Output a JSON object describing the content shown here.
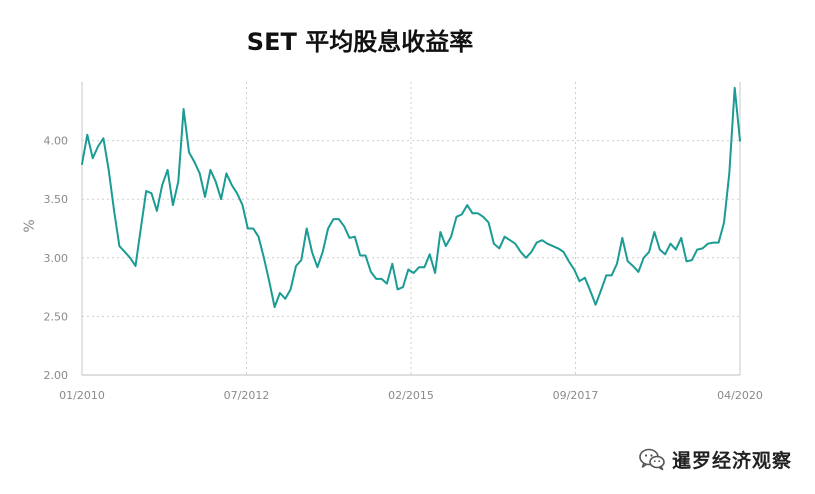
{
  "chart_data": {
    "type": "line",
    "title": "SET 平均股息收益率",
    "xlabel": "",
    "ylabel": "%",
    "ylim": [
      2.0,
      4.5
    ],
    "yticks": [
      "2.00",
      "2.50",
      "3.00",
      "3.50",
      "4.00"
    ],
    "xticks": [
      "01/2010",
      "07/2012",
      "02/2015",
      "09/2017",
      "04/2020"
    ],
    "grid": true,
    "line_color": "#1a9b94",
    "series": [
      {
        "values": [
          3.8,
          4.05,
          3.85,
          3.95,
          4.02,
          3.75,
          3.4,
          3.1,
          3.05,
          3.0,
          2.93,
          3.25,
          3.57,
          3.55,
          3.4,
          3.62,
          3.75,
          3.45,
          3.65,
          4.27,
          3.9,
          3.82,
          3.72,
          3.52,
          3.75,
          3.65,
          3.5,
          3.72,
          3.62,
          3.55,
          3.45,
          3.25,
          3.25,
          3.18,
          3.0,
          2.8,
          2.58,
          2.7,
          2.65,
          2.73,
          2.93,
          2.98,
          3.25,
          3.05,
          2.92,
          3.05,
          3.25,
          3.33,
          3.33,
          3.27,
          3.17,
          3.18,
          3.02,
          3.02,
          2.88,
          2.82,
          2.82,
          2.78,
          2.95,
          2.73,
          2.75,
          2.9,
          2.87,
          2.92,
          2.92,
          3.03,
          2.87,
          3.22,
          3.1,
          3.18,
          3.35,
          3.37,
          3.45,
          3.38,
          3.38,
          3.35,
          3.3,
          3.12,
          3.08,
          3.18,
          3.15,
          3.12,
          3.05,
          3.0,
          3.05,
          3.13,
          3.15,
          3.12,
          3.1,
          3.08,
          3.05,
          2.97,
          2.9,
          2.8,
          2.83,
          2.72,
          2.6,
          2.72,
          2.85,
          2.85,
          2.95,
          3.17,
          2.97,
          2.93,
          2.88,
          3.0,
          3.05,
          3.22,
          3.07,
          3.03,
          3.12,
          3.07,
          3.17,
          2.97,
          2.98,
          3.07,
          3.08,
          3.12,
          3.13,
          3.13,
          3.3,
          3.72,
          4.45,
          4.0
        ]
      }
    ]
  },
  "watermark": {
    "text": "暹罗经济观察",
    "icon": "wechat-icon"
  }
}
